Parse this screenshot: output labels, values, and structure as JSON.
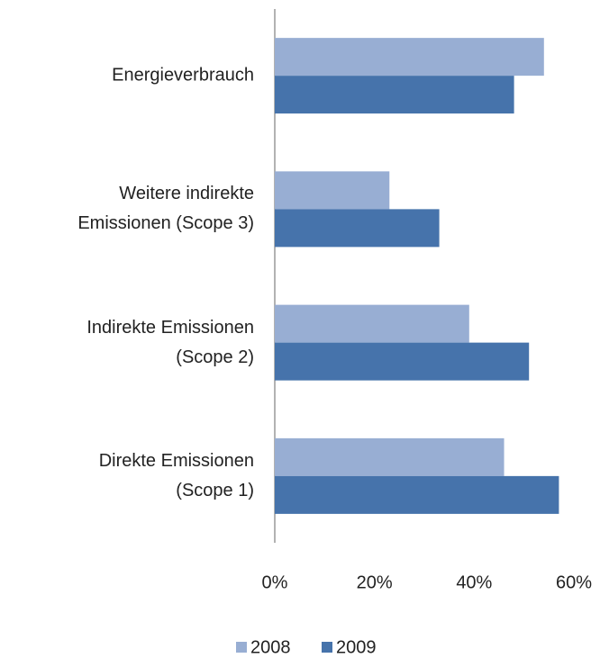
{
  "chart_data": {
    "type": "bar",
    "orientation": "horizontal",
    "categories": [
      "Energieverbrauch",
      "Weitere indirekte\nEmissionen (Scope 3)",
      "Indirekte Emissionen\n(Scope 2)",
      "Direkte Emissionen\n(Scope 1)"
    ],
    "series": [
      {
        "name": "2008",
        "color": "#98aed3",
        "values": [
          54,
          23,
          39,
          46
        ]
      },
      {
        "name": "2009",
        "color": "#4673ab",
        "values": [
          48,
          33,
          51,
          57
        ]
      }
    ],
    "xlim": [
      0,
      60
    ],
    "xticks": [
      {
        "value": 0,
        "label": "0%"
      },
      {
        "value": 20,
        "label": "20%"
      },
      {
        "value": 40,
        "label": "40%"
      },
      {
        "value": 60,
        "label": "60%"
      }
    ],
    "grid": false,
    "legend": "bottom"
  }
}
